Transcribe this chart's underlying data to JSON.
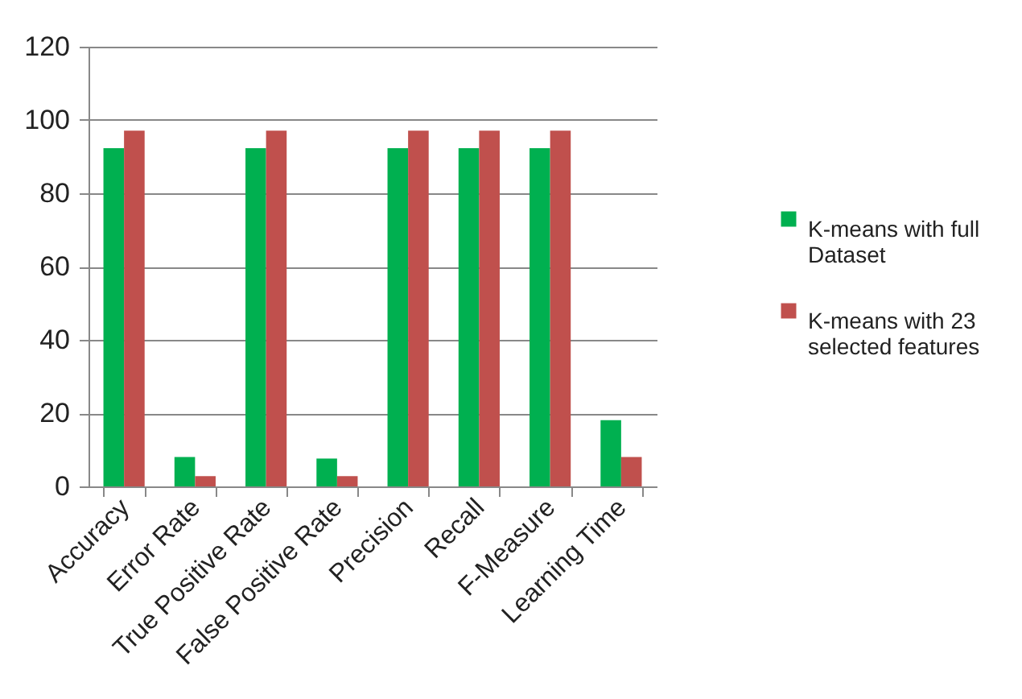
{
  "chart_data": {
    "type": "bar",
    "categories": [
      "Accuracy",
      "Error Rate",
      "True Positive Rate",
      "False Positive Rate",
      "Precision",
      "Recall",
      "F-Measure",
      "Learning Time"
    ],
    "series": [
      {
        "name": "K-means with full Dataset",
        "color": "#00b050",
        "values": [
          92.3,
          8.0,
          92.3,
          7.6,
          92.3,
          92.3,
          92.3,
          18.1
        ]
      },
      {
        "name": "K-means with 23 selected features",
        "color": "#c0504d",
        "values": [
          97.1,
          2.8,
          97.1,
          2.8,
          97.1,
          97.1,
          97.1,
          8.0
        ]
      }
    ],
    "ylim": [
      0,
      120
    ],
    "yticks": [
      0,
      20,
      40,
      60,
      80,
      100,
      120
    ],
    "grid": "y",
    "legend": "right"
  }
}
